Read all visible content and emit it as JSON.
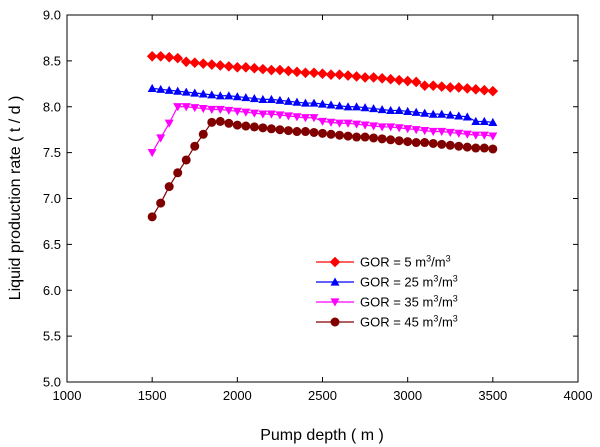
{
  "chart_data": {
    "type": "line",
    "xlabel": "Pump depth ( m )",
    "ylabel": "Liquid production rate ( t / d )",
    "xlim": [
      1000,
      4000
    ],
    "ylim": [
      5.0,
      9.0
    ],
    "xticks": [
      "1000",
      "1500",
      "2000",
      "2500",
      "3000",
      "3500",
      "4000"
    ],
    "yticks": [
      "5.0",
      "5.5",
      "6.0",
      "6.5",
      "7.0",
      "7.5",
      "8.0",
      "8.5",
      "9.0"
    ],
    "grid": false,
    "legend_position": "center-right",
    "x": [
      1500,
      1550,
      1600,
      1650,
      1700,
      1750,
      1800,
      1850,
      1900,
      1950,
      2000,
      2050,
      2100,
      2150,
      2200,
      2250,
      2300,
      2350,
      2400,
      2450,
      2500,
      2550,
      2600,
      2650,
      2700,
      2750,
      2800,
      2850,
      2900,
      2950,
      3000,
      3050,
      3100,
      3150,
      3200,
      3250,
      3300,
      3350,
      3400,
      3450,
      3500
    ],
    "series": [
      {
        "name": "GOR = 5 m³/m³",
        "legend_base": "GOR = 5 m",
        "legend_mid": "/m",
        "legend_sup": "3",
        "color": "#ff0000",
        "marker": "diamond",
        "values": [
          8.55,
          8.55,
          8.54,
          8.53,
          8.49,
          8.48,
          8.47,
          8.46,
          8.45,
          8.44,
          8.43,
          8.43,
          8.42,
          8.41,
          8.4,
          8.4,
          8.39,
          8.38,
          8.37,
          8.37,
          8.36,
          8.35,
          8.35,
          8.34,
          8.33,
          8.32,
          8.32,
          8.31,
          8.3,
          8.29,
          8.28,
          8.27,
          8.23,
          8.23,
          8.22,
          8.21,
          8.21,
          8.2,
          8.19,
          8.18,
          8.17
        ]
      },
      {
        "name": "GOR = 25 m³/m³",
        "legend_base": "GOR = 25 m",
        "legend_mid": "/m",
        "legend_sup": "3",
        "color": "#0000ff",
        "marker": "triangle-up",
        "values": [
          8.2,
          8.19,
          8.18,
          8.17,
          8.16,
          8.15,
          8.14,
          8.13,
          8.12,
          8.12,
          8.11,
          8.1,
          8.09,
          8.08,
          8.08,
          8.07,
          8.06,
          8.05,
          8.04,
          8.04,
          8.03,
          8.02,
          8.01,
          8.0,
          8.0,
          7.99,
          7.98,
          7.97,
          7.96,
          7.96,
          7.95,
          7.94,
          7.93,
          7.92,
          7.92,
          7.91,
          7.9,
          7.89,
          7.84,
          7.84,
          7.83
        ]
      },
      {
        "name": "GOR = 35 m³/m³",
        "legend_base": "GOR = 35 m",
        "legend_mid": "/m",
        "legend_sup": "3",
        "color": "#ff00ff",
        "marker": "triangle-down",
        "values": [
          7.5,
          7.66,
          7.82,
          8.0,
          8.0,
          7.99,
          7.98,
          7.97,
          7.97,
          7.96,
          7.95,
          7.94,
          7.93,
          7.92,
          7.92,
          7.91,
          7.9,
          7.89,
          7.88,
          7.88,
          7.84,
          7.83,
          7.82,
          7.82,
          7.81,
          7.8,
          7.79,
          7.78,
          7.78,
          7.77,
          7.76,
          7.75,
          7.74,
          7.73,
          7.73,
          7.72,
          7.71,
          7.7,
          7.69,
          7.69,
          7.68
        ]
      },
      {
        "name": "GOR = 45 m³/m³",
        "legend_base": "GOR = 45 m",
        "legend_mid": "/m",
        "legend_sup": "3",
        "color": "#800000",
        "marker": "circle",
        "values": [
          6.8,
          6.95,
          7.13,
          7.28,
          7.42,
          7.57,
          7.7,
          7.83,
          7.84,
          7.82,
          7.8,
          7.79,
          7.78,
          7.77,
          7.76,
          7.75,
          7.74,
          7.73,
          7.73,
          7.72,
          7.71,
          7.7,
          7.69,
          7.68,
          7.67,
          7.67,
          7.66,
          7.65,
          7.64,
          7.63,
          7.62,
          7.61,
          7.61,
          7.6,
          7.59,
          7.58,
          7.57,
          7.56,
          7.55,
          7.55,
          7.54
        ]
      }
    ]
  }
}
